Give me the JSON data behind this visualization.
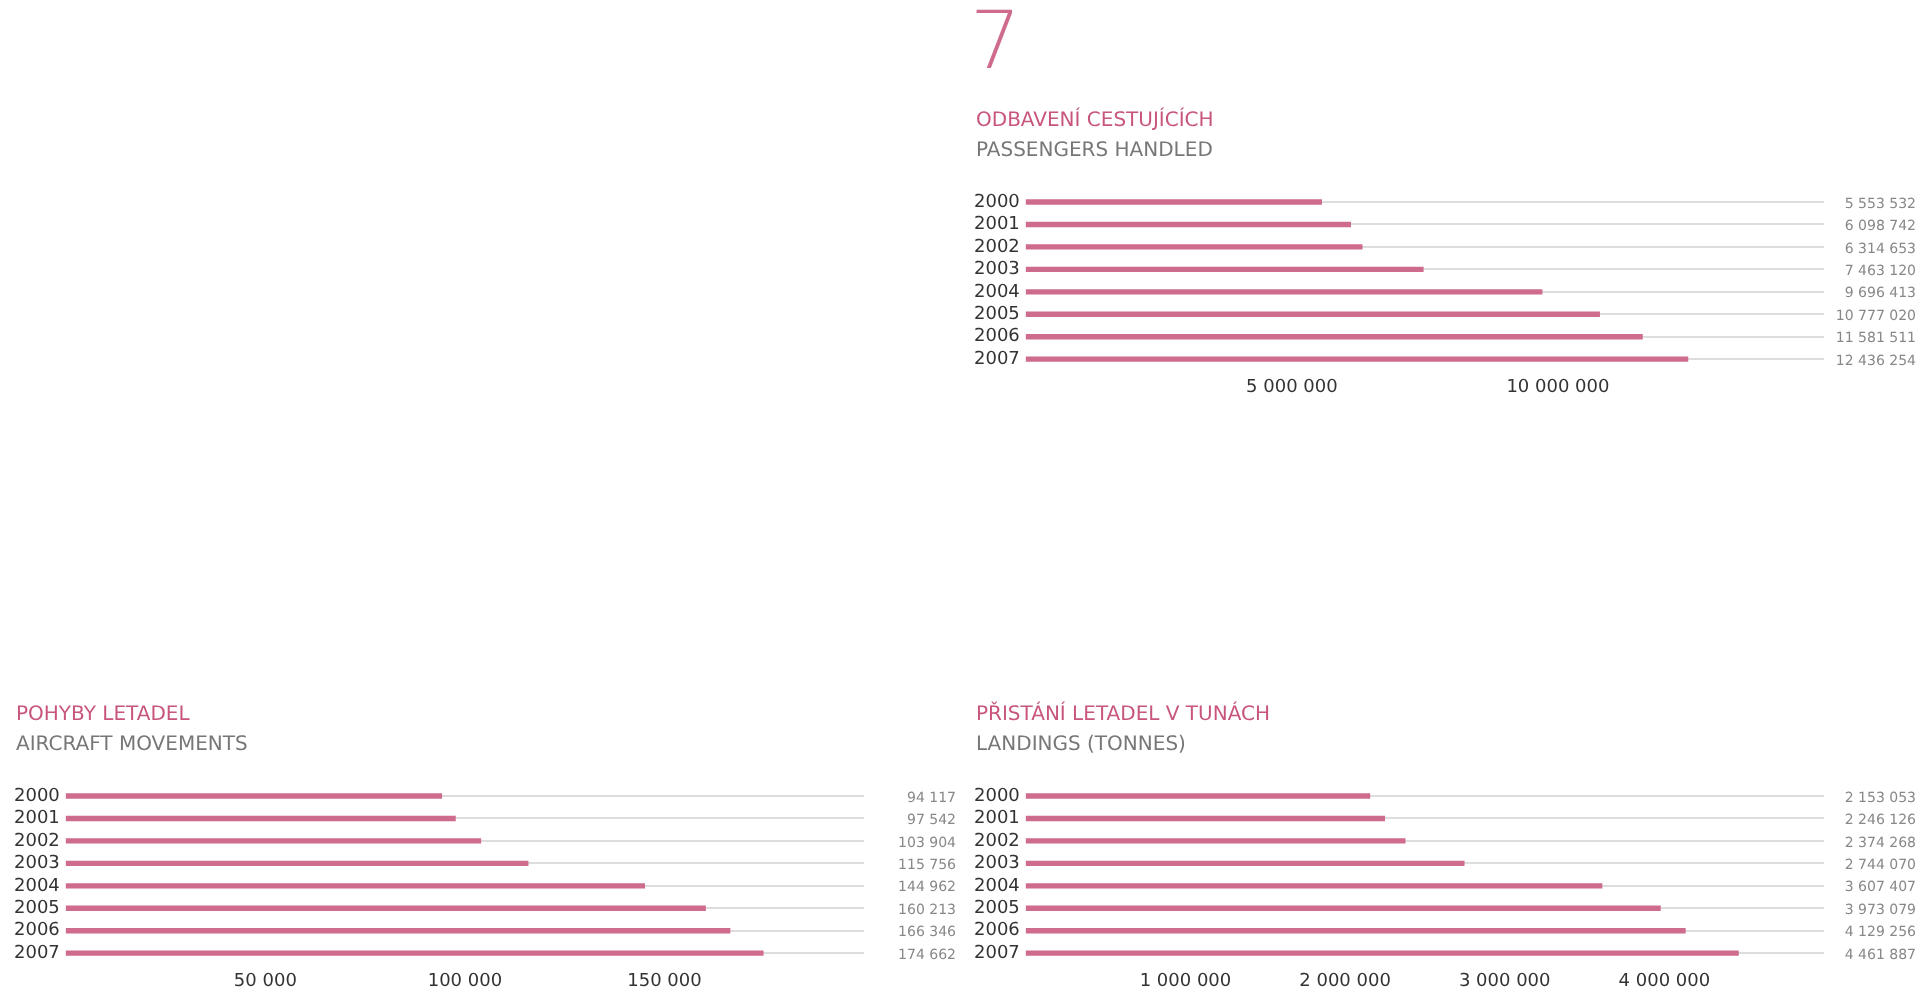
{
  "chart_data": [
    {
      "type": "bar",
      "orientation": "horizontal",
      "title": "ODBAVENÍ CESTUJÍCÍCH",
      "subtitle": "PASSENGERS HANDLED",
      "annotations": [
        "7"
      ],
      "categories": [
        "2000",
        "2001",
        "2002",
        "2003",
        "2004",
        "2005",
        "2006",
        "2007"
      ],
      "color": "#cf6b8c",
      "values": [
        5553532,
        6098742,
        6314653,
        7463120,
        9696413,
        10777020,
        11581511,
        12436254
      ],
      "value_labels": [
        "5 553 532",
        "6 098 742",
        "6 314 653",
        "7 463 120",
        "9 696 413",
        "10 777 020",
        "11 581 511",
        "12 436 254"
      ],
      "xlim": [
        0,
        15000000
      ],
      "xticks": [
        {
          "value": 5000000,
          "label": "5 000 000"
        },
        {
          "value": 10000000,
          "label": "10 000 000"
        }
      ],
      "grid": "y",
      "legend": false
    },
    {
      "type": "bar",
      "orientation": "horizontal",
      "title": "POHYBY LETADEL",
      "subtitle": "AIRCRAFT MOVEMENTS",
      "categories": [
        "2000",
        "2001",
        "2002",
        "2003",
        "2004",
        "2005",
        "2006",
        "2007"
      ],
      "color": "#cf6b8c",
      "values": [
        94117,
        97542,
        103904,
        115756,
        144962,
        160213,
        166346,
        174662
      ],
      "value_labels": [
        "94 117",
        "97 542",
        "103 904",
        "115 756",
        "144 962",
        "160 213",
        "166 346",
        "174 662"
      ],
      "xlim": [
        0,
        200000
      ],
      "xticks": [
        {
          "value": 50000,
          "label": "50 000"
        },
        {
          "value": 100000,
          "label": "100 000"
        },
        {
          "value": 150000,
          "label": "150 000"
        }
      ],
      "grid": "y",
      "legend": false
    },
    {
      "type": "bar",
      "orientation": "horizontal",
      "title": "PŘISTÁNÍ LETADEL V TUNÁCH",
      "subtitle": "LANDINGS (TONNES)",
      "categories": [
        "2000",
        "2001",
        "2002",
        "2003",
        "2004",
        "2005",
        "2006",
        "2007"
      ],
      "color": "#cf6b8c",
      "values": [
        2153053,
        2246126,
        2374268,
        2744070,
        3607407,
        3973079,
        4129256,
        4461887
      ],
      "value_labels": [
        "2 153 053",
        "2 246 126",
        "2 374 268",
        "2 744 070",
        "3 607 407",
        "3 973 079",
        "4 129 256",
        "4 461 887"
      ],
      "xlim": [
        0,
        5000000
      ],
      "xticks": [
        {
          "value": 1000000,
          "label": "1 000 000"
        },
        {
          "value": 2000000,
          "label": "2 000 000"
        },
        {
          "value": 3000000,
          "label": "3 000 000"
        },
        {
          "value": 4000000,
          "label": "4 000 000"
        }
      ],
      "grid": "y",
      "legend": false
    }
  ]
}
